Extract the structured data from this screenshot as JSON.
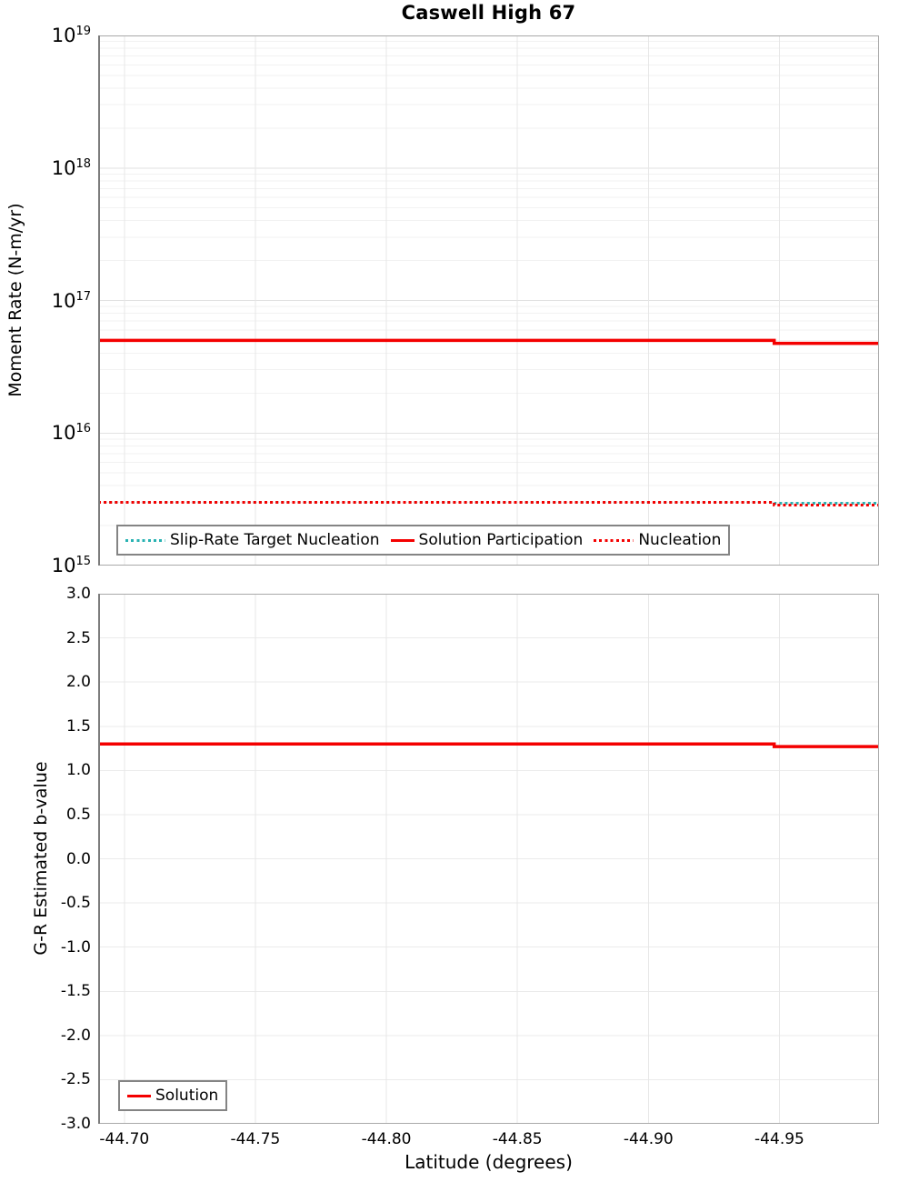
{
  "chart_data": [
    {
      "type": "line",
      "title": "Caswell High 67",
      "ylabel": "Moment Rate (N-m/yr)",
      "xlabel": "Latitude (degrees)",
      "yscale": "log",
      "ylim": [
        1000000000000000.0,
        1e+19
      ],
      "xlim": [
        -44.69,
        -44.988
      ],
      "x_axis_reversed": true,
      "grid": true,
      "legend_position": "bottom-left",
      "x_ticks": [
        -44.7,
        -44.75,
        -44.8,
        -44.85,
        -44.9,
        -44.95
      ],
      "y_tick_exponents": [
        19,
        18,
        17,
        16,
        15
      ],
      "series": [
        {
          "name": "Slip-Rate Target Nucleation",
          "color": "#28b2b2",
          "style": "dotted",
          "x": [
            -44.69,
            -44.948,
            -44.948,
            -44.988
          ],
          "y": [
            3000000000000000.0,
            3000000000000000.0,
            2950000000000000.0,
            2950000000000000.0
          ]
        },
        {
          "name": "Solution Participation",
          "color": "#f40000",
          "style": "solid",
          "x": [
            -44.69,
            -44.948,
            -44.948,
            -44.988
          ],
          "y": [
            5e+16,
            5e+16,
            4.75e+16,
            4.75e+16
          ]
        },
        {
          "name": "Nucleation",
          "color": "#f40000",
          "style": "dotted",
          "x": [
            -44.69,
            -44.948,
            -44.948,
            -44.988
          ],
          "y": [
            3000000000000000.0,
            3000000000000000.0,
            2860000000000000.0,
            2860000000000000.0
          ]
        }
      ]
    },
    {
      "type": "line",
      "title": "",
      "ylabel": "G-R Estimated b-value",
      "xlabel": "Latitude (degrees)",
      "yscale": "linear",
      "ylim": [
        -3.0,
        3.0
      ],
      "xlim": [
        -44.69,
        -44.988
      ],
      "x_axis_reversed": true,
      "grid": true,
      "legend_position": "bottom-left",
      "x_ticks": [
        -44.7,
        -44.75,
        -44.8,
        -44.85,
        -44.9,
        -44.95
      ],
      "y_ticks": [
        3.0,
        2.5,
        2.0,
        1.5,
        1.0,
        0.5,
        0.0,
        -0.5,
        -1.0,
        -1.5,
        -2.0,
        -2.5,
        -3.0
      ],
      "series": [
        {
          "name": "Solution",
          "color": "#f40000",
          "style": "solid",
          "x": [
            -44.69,
            -44.948,
            -44.948,
            -44.988
          ],
          "y": [
            1.3,
            1.3,
            1.27,
            1.27
          ]
        }
      ]
    }
  ],
  "style": {
    "grid_major_color": "#e2e2e2",
    "grid_minor_color": "#f2f2f2",
    "grid_vertical_color": "#e7e7e7",
    "plot_border_color": "#a9a9a9",
    "axis_spine_color": "#7d7d7d"
  }
}
